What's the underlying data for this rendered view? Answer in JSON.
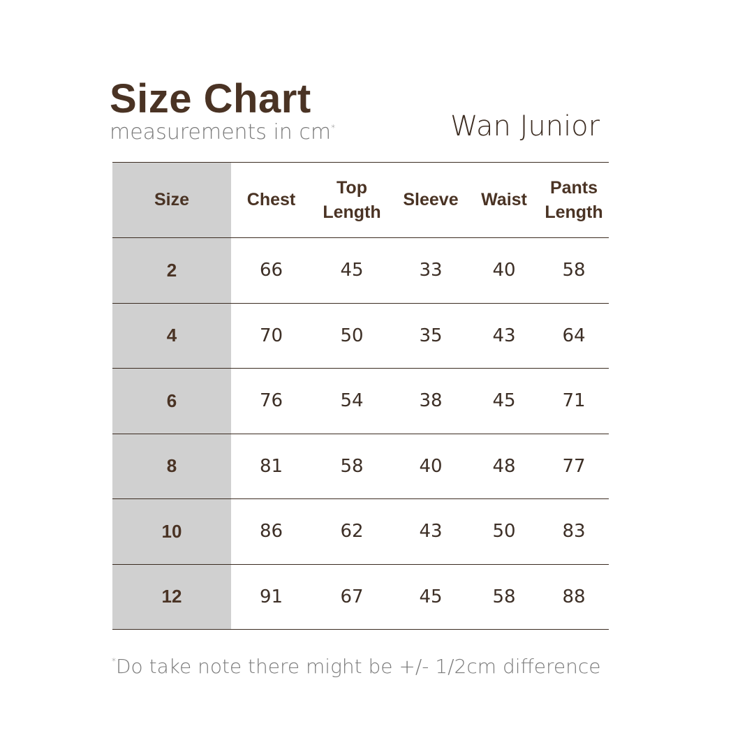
{
  "header": {
    "title": "Size Chart",
    "subtitle": "measurements in cm",
    "subtitle_mark": "*",
    "brand": "Wan Junior"
  },
  "table": {
    "columns": [
      "Size",
      "Chest",
      "Top Length",
      "Sleeve",
      "Waist",
      "Pants Length"
    ],
    "rows": [
      [
        "2",
        "66",
        "45",
        "33",
        "40",
        "58"
      ],
      [
        "4",
        "70",
        "50",
        "35",
        "43",
        "64"
      ],
      [
        "6",
        "76",
        "54",
        "38",
        "45",
        "71"
      ],
      [
        "8",
        "81",
        "58",
        "40",
        "48",
        "77"
      ],
      [
        "10",
        "86",
        "62",
        "43",
        "50",
        "83"
      ],
      [
        "12",
        "91",
        "67",
        "45",
        "58",
        "88"
      ]
    ]
  },
  "footer": {
    "note_mark": "*",
    "note": "Do take note there might be  +/- 1/2cm difference"
  },
  "colors": {
    "text_brown": "#4a3324",
    "size_column_bg": "#d0d0d0",
    "muted_text": "#7a7a7a"
  }
}
